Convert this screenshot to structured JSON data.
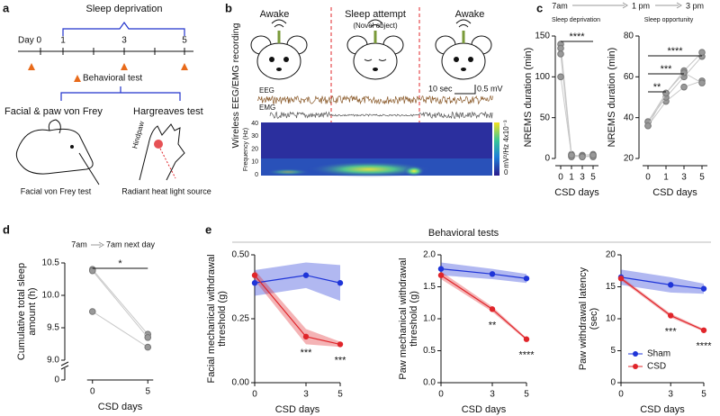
{
  "panel_labels": [
    "a",
    "b",
    "c",
    "d",
    "e"
  ],
  "timeline": {
    "title": "Sleep deprivation",
    "day0": "Day 0",
    "days": [
      1,
      3,
      5
    ],
    "behavioral_test": "Behavioral test",
    "test1": "Facial & paw von Frey",
    "test2": "Hargreaves test",
    "hindpaw": "Hindpaw",
    "caption1": "Facial von Frey test",
    "caption2": "Radiant heat light source"
  },
  "recording": {
    "states": [
      "Awake",
      "Sleep attempt",
      "Awake"
    ],
    "note": "(Novel object)",
    "title": "Wireless EEG/EMG recording",
    "eeg": "EEG",
    "emg": "EMG",
    "scale_time": "10 sec",
    "scale_volt": "0.5 mV",
    "freq_label": "Frequency (Hz)",
    "freq_ticks": [
      40,
      30,
      20,
      10,
      0
    ],
    "power_unit": "mV²/Hz",
    "power_max": "4x10⁻³",
    "power_min": "0"
  },
  "schedule_c": {
    "times": [
      "7am",
      "1 pm",
      "3 pm"
    ],
    "phases": [
      "Sleep deprivation",
      "Sleep opportunity"
    ]
  },
  "schedule_d": {
    "times": [
      "7am",
      "7am next day"
    ]
  },
  "behavioral_title": "Behavioral tests",
  "chart_data": [
    {
      "type": "paired",
      "ylabel": "NREMS duration (min)",
      "xlabel": "CSD days",
      "categories": [
        "0",
        "1",
        "3",
        "5"
      ],
      "ylim": [
        0,
        150
      ],
      "yticks": [
        0,
        50,
        100,
        150
      ],
      "color": "#999999",
      "series": [
        {
          "values": [
            140,
            5,
            2,
            3
          ]
        },
        {
          "values": [
            135,
            3,
            4,
            5
          ]
        },
        {
          "values": [
            128,
            2,
            3,
            2
          ]
        },
        {
          "values": [
            100,
            4,
            2,
            4
          ]
        }
      ],
      "annotations": [
        "****"
      ]
    },
    {
      "type": "paired",
      "ylabel": "NREMS duration (min)",
      "xlabel": "CSD days",
      "categories": [
        "0",
        "1",
        "3",
        "5"
      ],
      "ylim": [
        20,
        80
      ],
      "yticks": [
        20,
        40,
        60,
        80
      ],
      "color": "#999999",
      "series": [
        {
          "values": [
            36,
            48,
            55,
            58
          ]
        },
        {
          "values": [
            38,
            50,
            60,
            70
          ]
        },
        {
          "values": [
            38,
            52,
            63,
            72
          ]
        },
        {
          "values": [
            36,
            52,
            62,
            57
          ]
        }
      ],
      "annotations": [
        "**",
        "***",
        "****"
      ]
    },
    {
      "type": "paired",
      "ylabel": [
        "Cumulative total sleep",
        "amount (h)"
      ],
      "xlabel": "CSD days",
      "categories": [
        "0",
        "5"
      ],
      "ylim": [
        9.0,
        10.5
      ],
      "yticks": [
        {
          "value": 9.0,
          "label": "9.0"
        },
        9.5,
        {
          "value": 10.0,
          "label": "10.0"
        },
        10.5
      ],
      "ybreak_tick": 0,
      "color": "#999999",
      "series": [
        {
          "values": [
            10.4,
            9.4
          ]
        },
        {
          "values": [
            10.38,
            9.35
          ]
        },
        {
          "values": [
            9.75,
            9.2
          ]
        }
      ],
      "annotations": [
        "*"
      ]
    },
    {
      "type": "line",
      "ylabel": [
        "Facial mechanical withdrawal",
        "threshold (g)"
      ],
      "xlabel": "CSD days",
      "x": [
        0,
        3,
        5
      ],
      "xlim": [
        0,
        5
      ],
      "xticks": [
        0,
        3,
        5
      ],
      "ylim": [
        0,
        0.5
      ],
      "yticks": [
        {
          "value": 0,
          "label": "0.00"
        },
        0.25,
        {
          "value": 0.5,
          "label": "0.50"
        }
      ],
      "series": [
        {
          "name": "Sham",
          "color": "#1f35d8",
          "values": [
            0.39,
            0.42,
            0.39
          ],
          "errors": [
            0.05,
            0.05,
            0.07
          ]
        },
        {
          "name": "CSD",
          "color": "#e0252a",
          "values": [
            0.42,
            0.18,
            0.15
          ],
          "errors": [
            0.02,
            0.03,
            0.01
          ]
        }
      ],
      "annotations": [
        "***",
        "***"
      ]
    },
    {
      "type": "line",
      "ylabel": [
        "Paw mechanical withdrawal",
        "threshold (g)"
      ],
      "xlabel": "CSD days",
      "x": [
        0,
        3,
        5
      ],
      "xlim": [
        0,
        5
      ],
      "xticks": [
        0,
        3,
        5
      ],
      "ylim": [
        0,
        2
      ],
      "yticks": [
        {
          "value": 0,
          "label": "0.0"
        },
        0.5,
        {
          "value": 1,
          "label": "1.0"
        },
        1.5,
        {
          "value": 2,
          "label": "2.0"
        }
      ],
      "series": [
        {
          "name": "Sham",
          "color": "#1f35d8",
          "values": [
            1.78,
            1.7,
            1.63
          ],
          "errors": [
            0.1,
            0.08,
            0.07
          ]
        },
        {
          "name": "CSD",
          "color": "#e0252a",
          "values": [
            1.68,
            1.15,
            0.68
          ],
          "errors": [
            0.06,
            0.04,
            0.02
          ]
        }
      ],
      "annotations": [
        "**",
        "****"
      ]
    },
    {
      "type": "line",
      "ylabel": [
        "Paw withdrawal latency",
        "(sec)"
      ],
      "xlabel": "CSD days",
      "x": [
        0,
        3,
        5
      ],
      "xlim": [
        0,
        5
      ],
      "xticks": [
        0,
        3,
        5
      ],
      "ylim": [
        0,
        20
      ],
      "yticks": [
        0,
        5,
        10,
        15,
        20
      ],
      "legend": "lower left",
      "series": [
        {
          "name": "Sham",
          "color": "#1f35d8",
          "values": [
            16.5,
            15.3,
            14.7
          ],
          "errors": [
            1.2,
            1.2,
            0.8
          ]
        },
        {
          "name": "CSD",
          "color": "#e0252a",
          "values": [
            16.3,
            10.5,
            8.2
          ],
          "errors": [
            0.3,
            0.3,
            0.2
          ]
        }
      ],
      "annotations": [
        "***",
        "****"
      ]
    }
  ]
}
